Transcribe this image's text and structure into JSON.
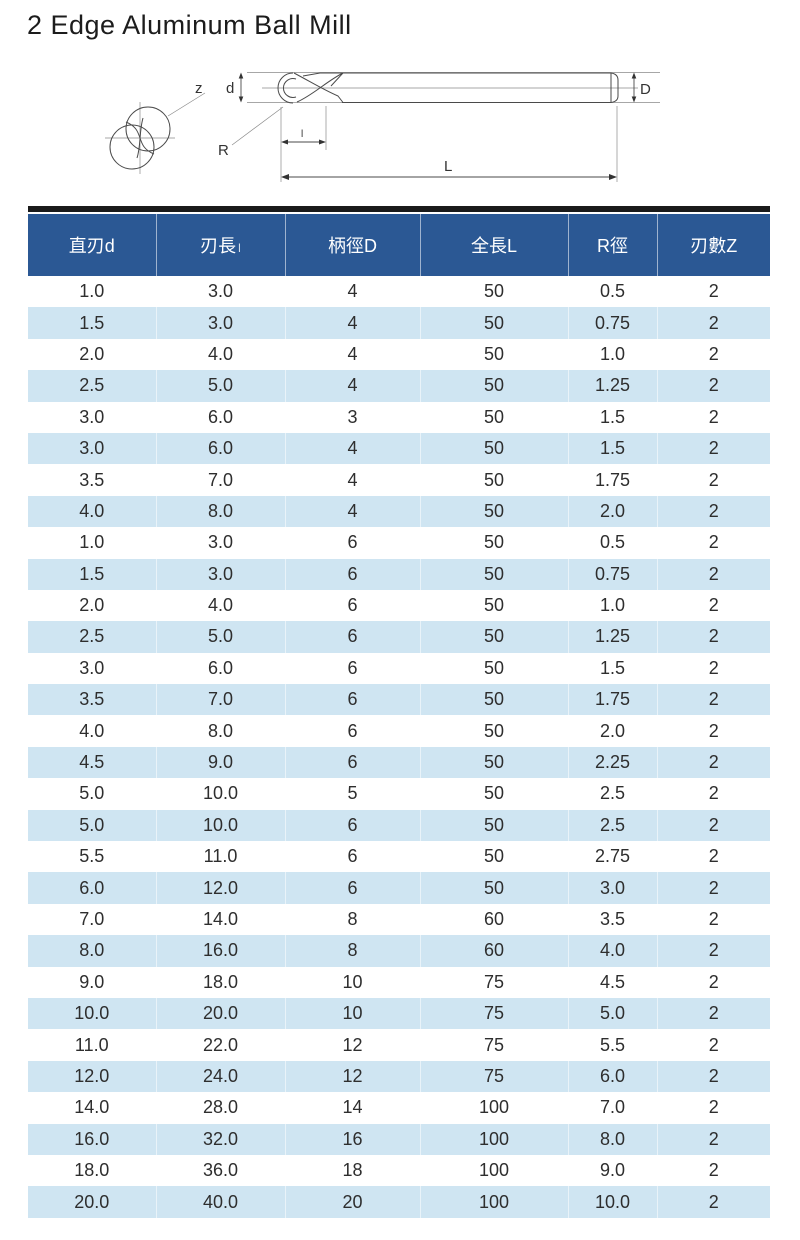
{
  "page": {
    "title": "2 Edge Aluminum Ball Mill"
  },
  "diagram": {
    "labels": {
      "flutes": "z",
      "cut_diameter": "d",
      "radius": "R",
      "flute_length": "l",
      "overall_length": "L",
      "shank_diameter": "D"
    }
  },
  "table": {
    "columns": [
      {
        "label": "直刃d",
        "suffix": ""
      },
      {
        "label": "刃長",
        "suffix": "l"
      },
      {
        "label": "柄徑D",
        "suffix": ""
      },
      {
        "label": "全長L",
        "suffix": ""
      },
      {
        "label": "R徑",
        "suffix": ""
      },
      {
        "label": "刃數Z",
        "suffix": ""
      }
    ],
    "rows": [
      [
        "1.0",
        "3.0",
        "4",
        "50",
        "0.5",
        "2"
      ],
      [
        "1.5",
        "3.0",
        "4",
        "50",
        "0.75",
        "2"
      ],
      [
        "2.0",
        "4.0",
        "4",
        "50",
        "1.0",
        "2"
      ],
      [
        "2.5",
        "5.0",
        "4",
        "50",
        "1.25",
        "2"
      ],
      [
        "3.0",
        "6.0",
        "3",
        "50",
        "1.5",
        "2"
      ],
      [
        "3.0",
        "6.0",
        "4",
        "50",
        "1.5",
        "2"
      ],
      [
        "3.5",
        "7.0",
        "4",
        "50",
        "1.75",
        "2"
      ],
      [
        "4.0",
        "8.0",
        "4",
        "50",
        "2.0",
        "2"
      ],
      [
        "1.0",
        "3.0",
        "6",
        "50",
        "0.5",
        "2"
      ],
      [
        "1.5",
        "3.0",
        "6",
        "50",
        "0.75",
        "2"
      ],
      [
        "2.0",
        "4.0",
        "6",
        "50",
        "1.0",
        "2"
      ],
      [
        "2.5",
        "5.0",
        "6",
        "50",
        "1.25",
        "2"
      ],
      [
        "3.0",
        "6.0",
        "6",
        "50",
        "1.5",
        "2"
      ],
      [
        "3.5",
        "7.0",
        "6",
        "50",
        "1.75",
        "2"
      ],
      [
        "4.0",
        "8.0",
        "6",
        "50",
        "2.0",
        "2"
      ],
      [
        "4.5",
        "9.0",
        "6",
        "50",
        "2.25",
        "2"
      ],
      [
        "5.0",
        "10.0",
        "5",
        "50",
        "2.5",
        "2"
      ],
      [
        "5.0",
        "10.0",
        "6",
        "50",
        "2.5",
        "2"
      ],
      [
        "5.5",
        "11.0",
        "6",
        "50",
        "2.75",
        "2"
      ],
      [
        "6.0",
        "12.0",
        "6",
        "50",
        "3.0",
        "2"
      ],
      [
        "7.0",
        "14.0",
        "8",
        "60",
        "3.5",
        "2"
      ],
      [
        "8.0",
        "16.0",
        "8",
        "60",
        "4.0",
        "2"
      ],
      [
        "9.0",
        "18.0",
        "10",
        "75",
        "4.5",
        "2"
      ],
      [
        "10.0",
        "20.0",
        "10",
        "75",
        "5.0",
        "2"
      ],
      [
        "11.0",
        "22.0",
        "12",
        "75",
        "5.5",
        "2"
      ],
      [
        "12.0",
        "24.0",
        "12",
        "75",
        "6.0",
        "2"
      ],
      [
        "14.0",
        "28.0",
        "14",
        "100",
        "7.0",
        "2"
      ],
      [
        "16.0",
        "32.0",
        "16",
        "100",
        "8.0",
        "2"
      ],
      [
        "18.0",
        "36.0",
        "18",
        "100",
        "9.0",
        "2"
      ],
      [
        "20.0",
        "40.0",
        "20",
        "100",
        "10.0",
        "2"
      ]
    ]
  },
  "colors": {
    "header_bg": "#2b5894",
    "header_text": "#ffffff",
    "row_alt_bg": "#cfe5f2",
    "body_text": "#2e2e2e",
    "top_bar": "#1a1a1a"
  }
}
